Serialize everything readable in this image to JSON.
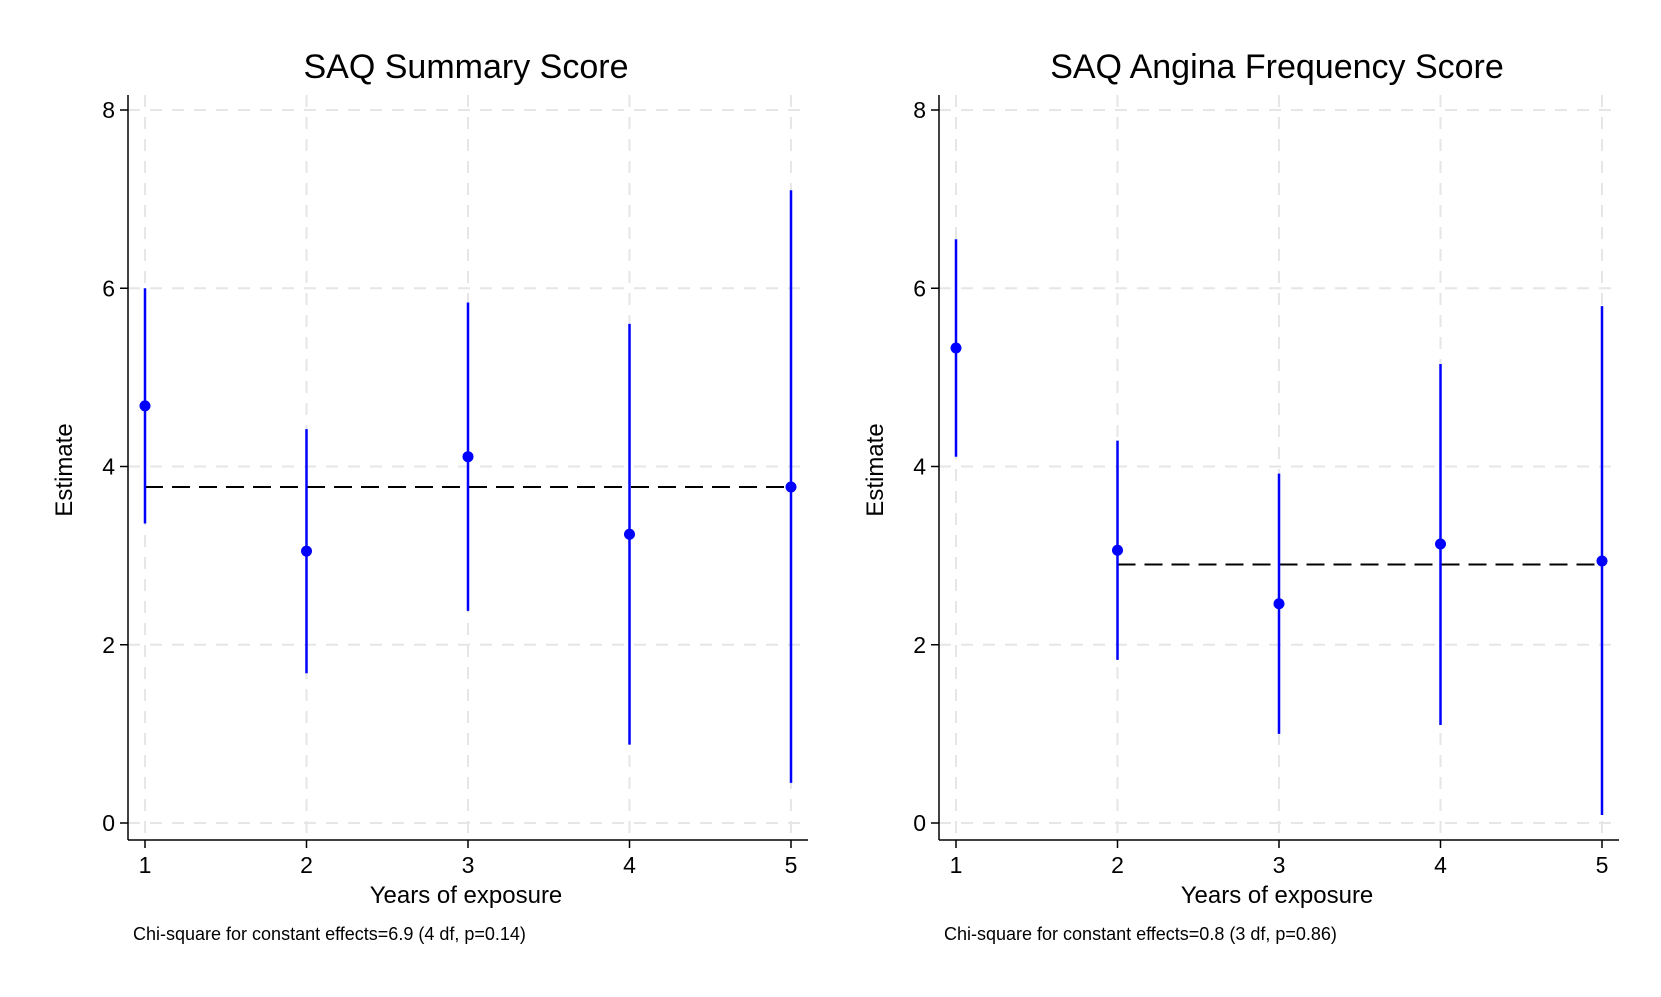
{
  "chart_data": [
    {
      "type": "scatter",
      "title": "SAQ Summary Score",
      "xlabel": "Years of exposure",
      "ylabel": "Estimate",
      "x": [
        1,
        2,
        3,
        4,
        5
      ],
      "estimates": [
        4.68,
        3.05,
        4.11,
        3.24,
        3.77
      ],
      "ci_lower": [
        3.36,
        1.68,
        2.38,
        0.88,
        0.45
      ],
      "ci_upper": [
        6.0,
        4.42,
        5.84,
        5.6,
        7.1
      ],
      "constant_effect": 3.77,
      "constant_effect_x_range": [
        1,
        5
      ],
      "xlim": [
        0.9,
        5.1
      ],
      "ylim": [
        0,
        8
      ],
      "x_ticks": [
        1,
        2,
        3,
        4,
        5
      ],
      "y_ticks": [
        0,
        2,
        4,
        6,
        8
      ],
      "grid": true,
      "note": "Chi-square for constant effects=6.9 (4 df, p=0.14)"
    },
    {
      "type": "scatter",
      "title": "SAQ Angina Frequency Score",
      "xlabel": "Years of exposure",
      "ylabel": "Estimate",
      "x": [
        1,
        2,
        3,
        4,
        5
      ],
      "estimates": [
        5.33,
        3.06,
        2.46,
        3.13,
        2.94
      ],
      "ci_lower": [
        4.11,
        1.83,
        1.0,
        1.1,
        0.09
      ],
      "ci_upper": [
        6.55,
        4.29,
        3.92,
        5.15,
        5.8
      ],
      "constant_effect": 2.9,
      "constant_effect_x_range": [
        2,
        5
      ],
      "xlim": [
        0.9,
        5.1
      ],
      "ylim": [
        0,
        8
      ],
      "x_ticks": [
        1,
        2,
        3,
        4,
        5
      ],
      "y_ticks": [
        0,
        2,
        4,
        6,
        8
      ],
      "grid": true,
      "note": "Chi-square for constant effects=0.8 (3 df, p=0.86)"
    }
  ]
}
